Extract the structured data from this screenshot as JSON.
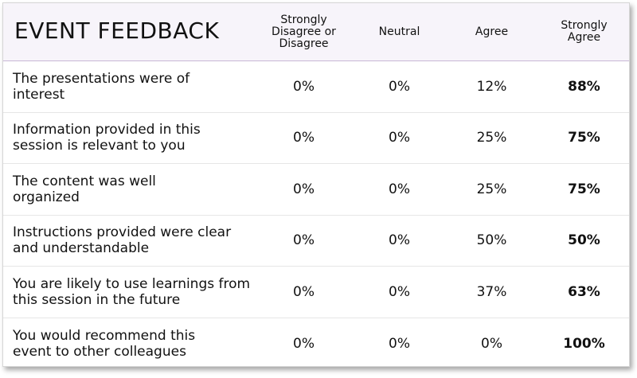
{
  "title": "EVENT FEEDBACK",
  "columns": [
    "Strongly Disagree or Disagree",
    "Neutral",
    "Agree",
    "Strongly Agree"
  ],
  "rows": [
    {
      "statement": "The presentations were of interest",
      "values": [
        "0%",
        "0%",
        "12%",
        "88%"
      ]
    },
    {
      "statement": "Information provided in this session is relevant to you",
      "values": [
        "0%",
        "0%",
        "25%",
        "75%"
      ]
    },
    {
      "statement": "The content was well organized",
      "values": [
        "0%",
        "0%",
        "25%",
        "75%"
      ]
    },
    {
      "statement": "Instructions provided were clear and understandable",
      "values": [
        "0%",
        "0%",
        "50%",
        "50%"
      ]
    },
    {
      "statement": "You are likely to use learnings from this session in the future",
      "values": [
        "0%",
        "0%",
        "37%",
        "63%"
      ]
    },
    {
      "statement": "You would recommend this event to other colleagues",
      "values": [
        "0%",
        "0%",
        "0%",
        "100%"
      ]
    }
  ]
}
